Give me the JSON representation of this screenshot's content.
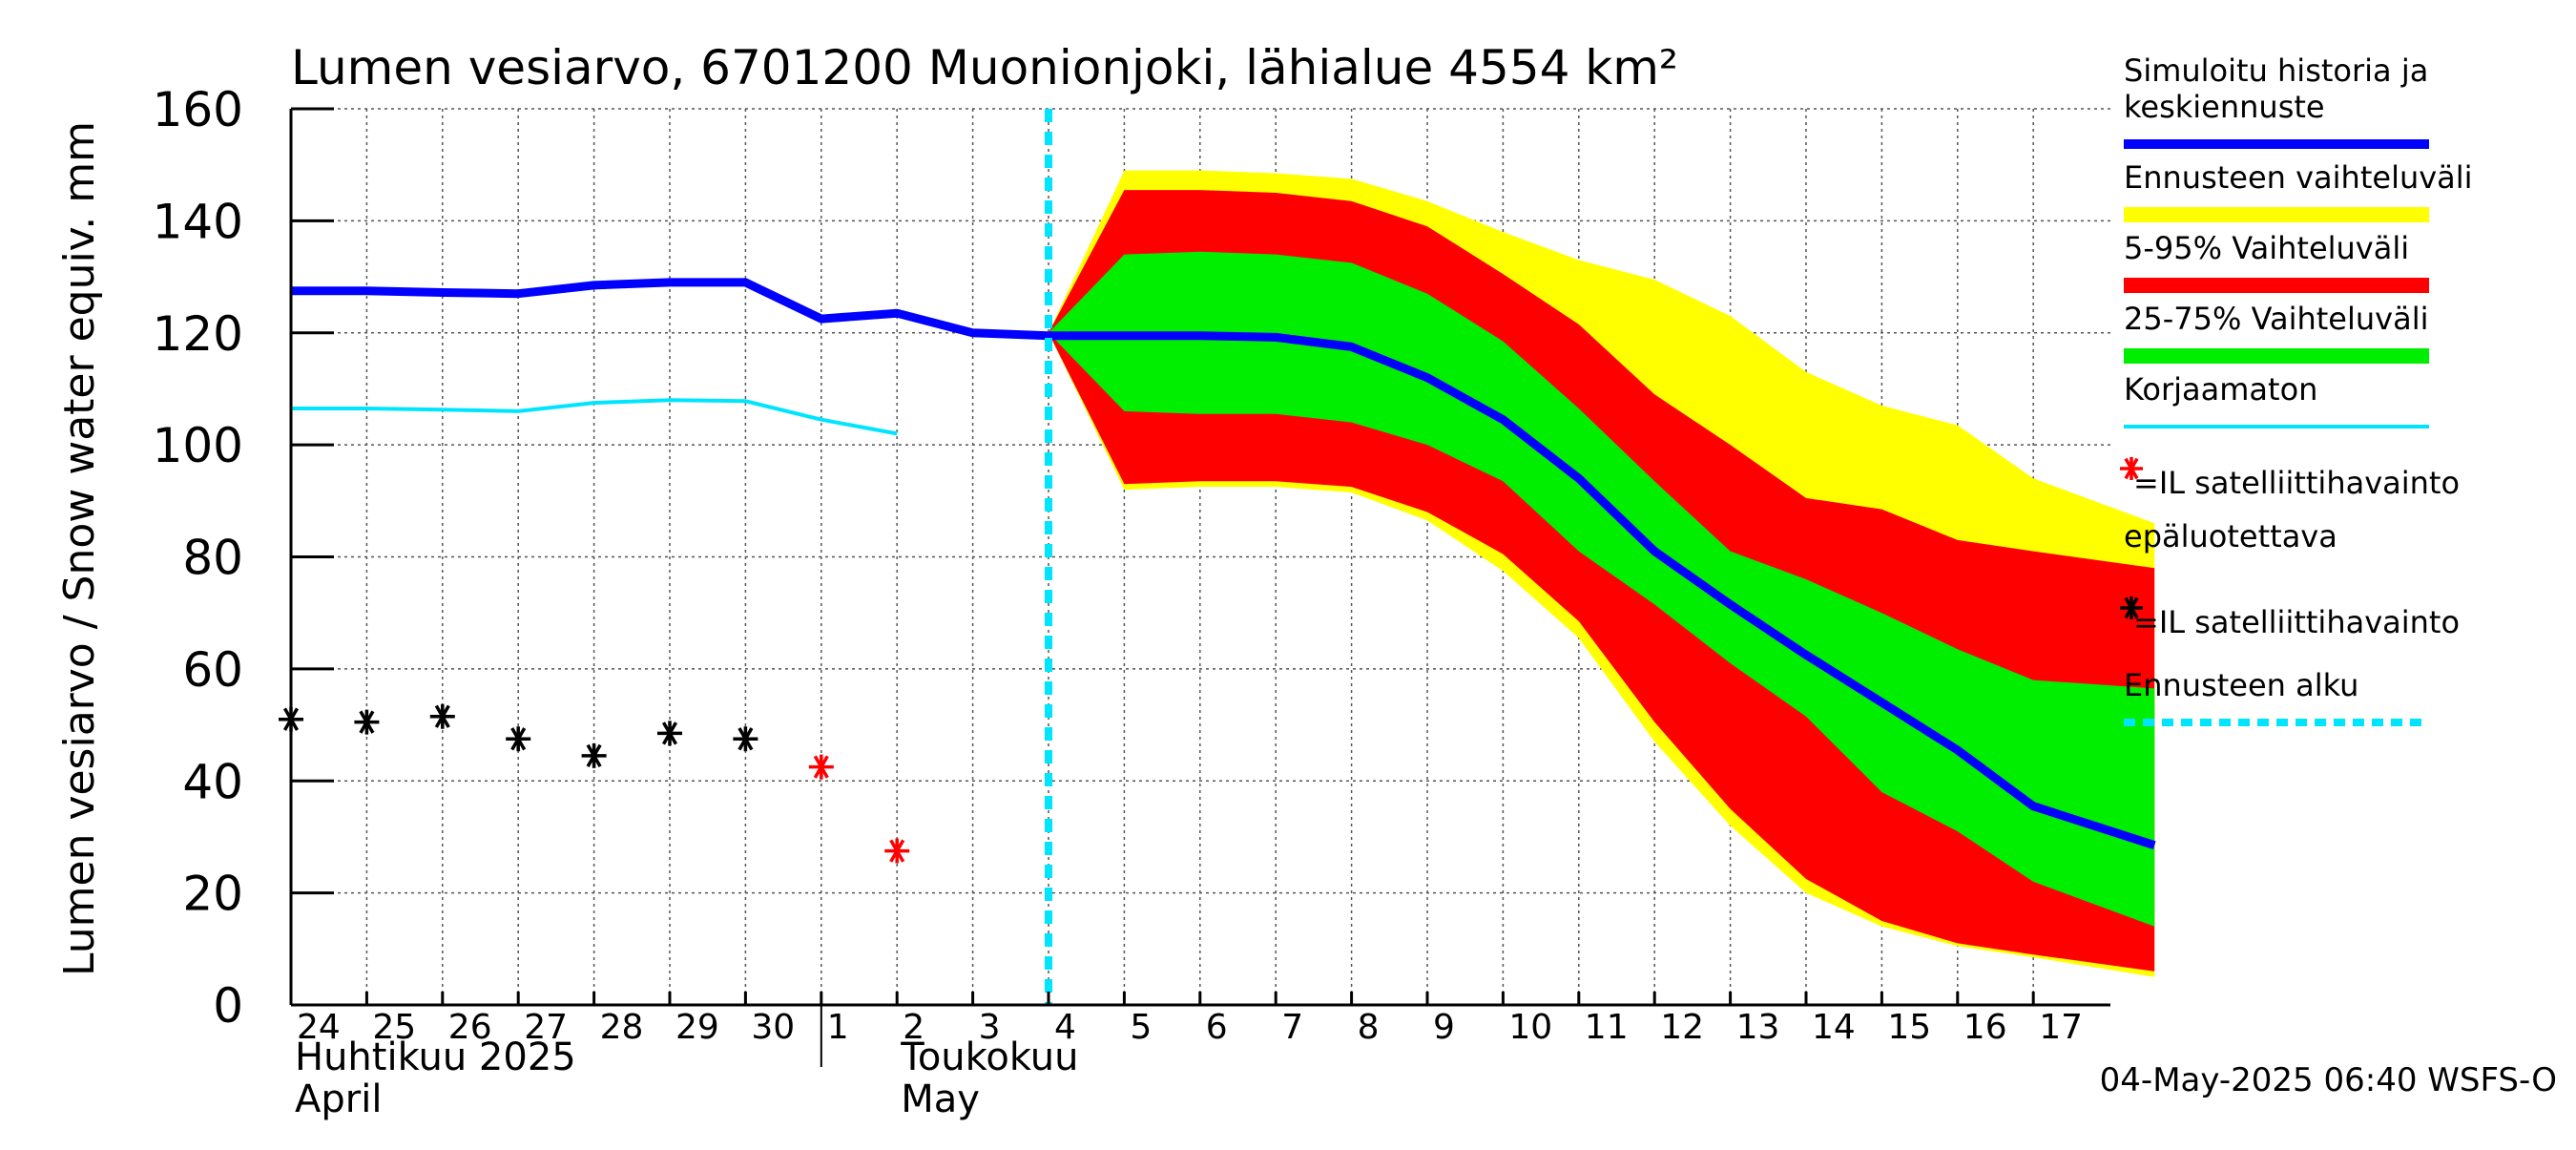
{
  "chart_data": {
    "type": "area",
    "title": "Lumen vesiarvo, 6701200 Muonionjoki, lähialue 4554 km²",
    "ylabel": "Lumen vesiarvo / Snow water equiv.    mm",
    "ylim": [
      0,
      160
    ],
    "yticks": [
      0,
      20,
      40,
      60,
      80,
      100,
      120,
      140,
      160
    ],
    "x_range": [
      0,
      24.6
    ],
    "grid": true,
    "day_ticks": [
      {
        "x": 0,
        "label": "24"
      },
      {
        "x": 1,
        "label": "25"
      },
      {
        "x": 2,
        "label": "26"
      },
      {
        "x": 3,
        "label": "27"
      },
      {
        "x": 4,
        "label": "28"
      },
      {
        "x": 5,
        "label": "29"
      },
      {
        "x": 6,
        "label": "30"
      },
      {
        "x": 7,
        "label": "1"
      },
      {
        "x": 8,
        "label": "2"
      },
      {
        "x": 9,
        "label": "3"
      },
      {
        "x": 10,
        "label": "4"
      },
      {
        "x": 11,
        "label": "5"
      },
      {
        "x": 12,
        "label": "6"
      },
      {
        "x": 13,
        "label": "7"
      },
      {
        "x": 14,
        "label": "8"
      },
      {
        "x": 15,
        "label": "9"
      },
      {
        "x": 16,
        "label": "10"
      },
      {
        "x": 17,
        "label": "11"
      },
      {
        "x": 18,
        "label": "12"
      },
      {
        "x": 19,
        "label": "13"
      },
      {
        "x": 20,
        "label": "14"
      },
      {
        "x": 21,
        "label": "15"
      },
      {
        "x": 22,
        "label": "16"
      },
      {
        "x": 23,
        "label": "17"
      }
    ],
    "month_labels": [
      {
        "x": 0,
        "fi": "Huhtikuu  2025",
        "en": "April"
      },
      {
        "x": 8,
        "fi": "Toukokuu",
        "en": "May"
      }
    ],
    "month_separator_x": 7,
    "forecast_start_x": 10,
    "series": [
      {
        "name": "Simuloitu historia ja keskiennuste",
        "color": "#0000ff",
        "x": [
          0,
          1,
          2,
          3,
          4,
          5,
          6,
          7,
          8,
          9,
          10,
          11,
          12,
          13,
          14,
          15,
          16,
          17,
          18,
          19,
          20,
          21,
          22,
          23,
          24.6
        ],
        "values": [
          127.5,
          127.5,
          127.2,
          127,
          128.5,
          129,
          129,
          122.5,
          123.5,
          120,
          119.5,
          119.5,
          119.5,
          119.2,
          117.5,
          112,
          104.5,
          94,
          81,
          71.5,
          62.5,
          54,
          45.5,
          35.5,
          28.5
        ]
      },
      {
        "name": "Korjaamaton",
        "color": "#00e5ff",
        "x": [
          0,
          1,
          2,
          3,
          4,
          5,
          6,
          7,
          8
        ],
        "values": [
          106.5,
          106.5,
          106.3,
          106,
          107.5,
          108,
          107.8,
          104.5,
          102
        ]
      }
    ],
    "bands": [
      {
        "name": "Ennusteen vaihteluväli",
        "color": "#ffff00",
        "x": [
          10,
          11,
          12,
          13,
          14,
          15,
          16,
          17,
          18,
          19,
          20,
          21,
          22,
          23,
          24.6
        ],
        "upper": [
          120,
          149,
          149,
          148.5,
          147.5,
          143.5,
          138,
          133,
          129.5,
          123,
          113,
          107,
          103.5,
          94,
          86
        ],
        "lower": [
          120,
          92,
          92.5,
          92.5,
          91.5,
          86.5,
          77.5,
          65.5,
          47,
          32,
          20,
          14,
          10.5,
          8.5,
          5
        ]
      },
      {
        "name": "5-95% Vaihteluväli",
        "color": "#ff0000",
        "x": [
          10,
          11,
          12,
          13,
          14,
          15,
          16,
          17,
          18,
          19,
          20,
          21,
          22,
          23,
          24.6
        ],
        "upper": [
          120,
          145.5,
          145.5,
          145,
          143.5,
          139,
          130.5,
          121.5,
          109,
          100,
          90.5,
          88.5,
          83,
          81,
          78
        ],
        "lower": [
          120,
          93,
          93.5,
          93.5,
          92.5,
          88,
          80.5,
          68.5,
          50.5,
          35,
          22.5,
          15,
          11,
          9,
          6
        ]
      },
      {
        "name": "25-75% Vaihteluväli",
        "color": "#00ee00",
        "x": [
          10,
          11,
          12,
          13,
          14,
          15,
          16,
          17,
          18,
          19,
          20,
          21,
          22,
          23,
          24.6
        ],
        "upper": [
          120,
          134,
          134.5,
          134,
          132.5,
          127,
          118.5,
          106.5,
          93.5,
          81,
          76,
          70,
          63.5,
          58,
          56.5
        ],
        "lower": [
          120,
          106,
          105.5,
          105.5,
          104,
          100,
          93.5,
          81,
          71.5,
          61,
          51.5,
          38,
          31,
          22,
          14
        ]
      }
    ],
    "observations": [
      {
        "name": "IL satelliittihavainto",
        "color": "#000000",
        "x": [
          0,
          1,
          2,
          3,
          4,
          5,
          6
        ],
        "values": [
          51,
          50.5,
          51.5,
          47.5,
          44.5,
          48.5,
          47.5
        ]
      },
      {
        "name": "IL satelliittihavainto epäluotettava",
        "color": "#ff0000",
        "x": [
          7,
          8
        ],
        "values": [
          42.5,
          27.5
        ]
      }
    ],
    "legend": [
      {
        "kind": "line",
        "color": "#0000ff",
        "lines": [
          "Simuloitu historia ja",
          "keskiennuste"
        ]
      },
      {
        "kind": "band",
        "color": "#ffff00",
        "lines": [
          "Ennusteen vaihteluväli"
        ]
      },
      {
        "kind": "band",
        "color": "#ff0000",
        "lines": [
          "5-95% Vaihteluväli"
        ]
      },
      {
        "kind": "band",
        "color": "#00ee00",
        "lines": [
          "25-75% Vaihteluväli"
        ]
      },
      {
        "kind": "thin",
        "color": "#00e5ff",
        "lines": [
          "Korjaamaton"
        ]
      },
      {
        "kind": "marker",
        "color": "#ff0000",
        "lines": [
          "=IL satelliittihavainto",
          "epäluotettava"
        ]
      },
      {
        "kind": "marker",
        "color": "#000000",
        "lines": [
          "=IL satelliittihavainto"
        ]
      },
      {
        "kind": "dashed",
        "color": "#00e5ff",
        "lines": [
          "Ennusteen alku"
        ]
      }
    ],
    "footer": "04-May-2025 06:40 WSFS-O"
  }
}
